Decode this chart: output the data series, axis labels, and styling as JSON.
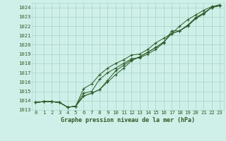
{
  "title": "Graphe pression niveau de la mer (hPa)",
  "background_color": "#cff0e8",
  "grid_color": "#aad8ce",
  "text_color": "#2d5a27",
  "line_color": "#2d5a27",
  "xlim": [
    -0.5,
    23.5
  ],
  "ylim": [
    1013,
    1024.5
  ],
  "xticks": [
    0,
    1,
    2,
    3,
    4,
    5,
    6,
    7,
    8,
    9,
    10,
    11,
    12,
    13,
    14,
    15,
    16,
    17,
    18,
    19,
    20,
    21,
    22,
    23
  ],
  "yticks": [
    1013,
    1014,
    1015,
    1016,
    1017,
    1018,
    1019,
    1020,
    1021,
    1022,
    1023,
    1024
  ],
  "series": [
    [
      1013.8,
      1013.9,
      1013.9,
      1013.8,
      1013.3,
      1013.4,
      1014.8,
      1015.0,
      1016.3,
      1017.0,
      1017.5,
      1018.0,
      1018.5,
      1018.6,
      1019.0,
      1019.5,
      1020.2,
      1021.5,
      1021.5,
      1022.0,
      1022.8,
      1023.3,
      1024.0,
      1024.2
    ],
    [
      1013.8,
      1013.9,
      1013.9,
      1013.8,
      1013.3,
      1013.4,
      1015.3,
      1015.8,
      1016.8,
      1017.5,
      1018.0,
      1018.4,
      1018.9,
      1019.0,
      1019.5,
      1020.2,
      1020.7,
      1021.2,
      1022.0,
      1022.7,
      1023.2,
      1023.7,
      1024.1,
      1024.3
    ],
    [
      1013.8,
      1013.9,
      1013.9,
      1013.8,
      1013.3,
      1013.4,
      1014.5,
      1014.8,
      1015.2,
      1016.2,
      1017.2,
      1017.8,
      1018.4,
      1018.7,
      1019.2,
      1019.7,
      1020.3,
      1021.2,
      1021.5,
      1022.1,
      1022.9,
      1023.4,
      1024.0,
      1024.2
    ],
    [
      1013.8,
      1013.9,
      1013.9,
      1013.8,
      1013.3,
      1013.4,
      1014.5,
      1014.8,
      1015.2,
      1016.0,
      1016.8,
      1017.5,
      1018.3,
      1018.7,
      1019.2,
      1019.7,
      1020.3,
      1021.2,
      1021.5,
      1022.1,
      1022.9,
      1023.4,
      1024.0,
      1024.2
    ]
  ],
  "xlabel_fontsize": 6.0,
  "tick_fontsize": 5.2
}
